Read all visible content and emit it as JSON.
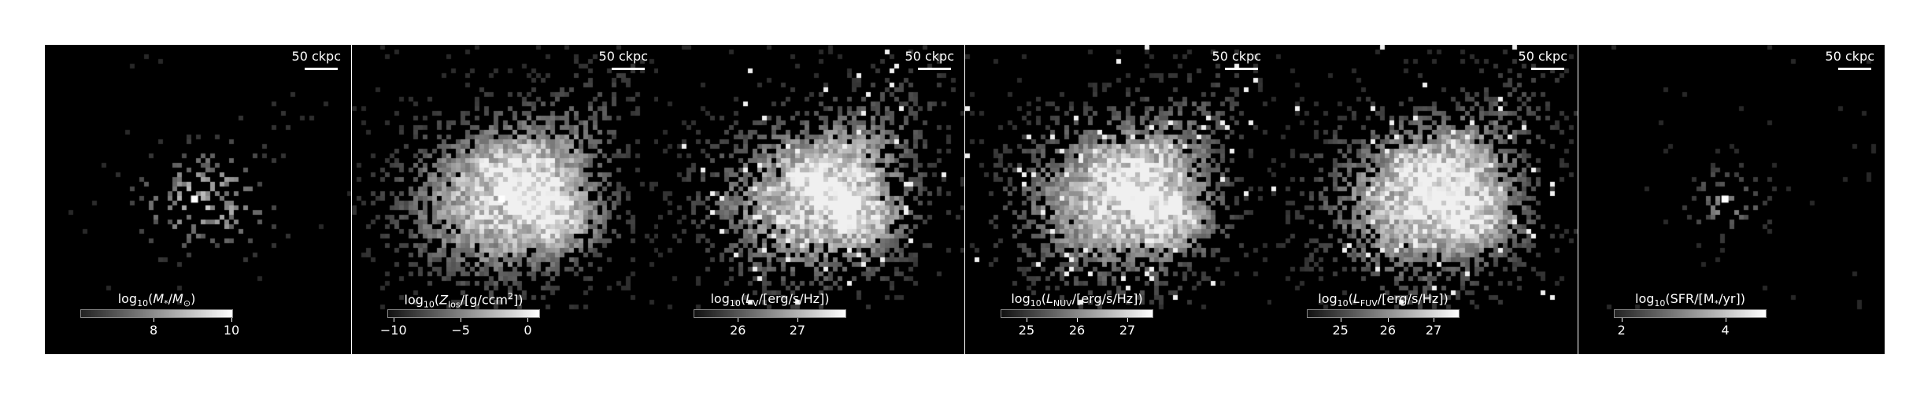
{
  "scale_label": "50 ckpc",
  "panels": [
    {
      "title_html": "log<sub>10</sub>(<i>M</i><sub>*</sub>/<i>M</i><sub>⊙</sub>)",
      "ticks": [
        {
          "label": "8",
          "frac": 0.48
        },
        {
          "label": "10",
          "frac": 0.99
        }
      ],
      "cmap": {
        "lo": "#222222",
        "hi": "#ffffff"
      },
      "image": {
        "spread": 0.55,
        "density": 0.25,
        "core": true,
        "ext": 0.22,
        "speckle": false,
        "base": 0.55
      }
    },
    {
      "title_html": "log<sub>10</sub>(<i>Z</i><sub>los</sub>/[g/ccm<sup>2</sup>])",
      "ticks": [
        {
          "label": "−10",
          "frac": 0.04
        },
        {
          "label": "−5",
          "frac": 0.48
        },
        {
          "label": "0",
          "frac": 0.92
        }
      ],
      "cmap": {
        "lo": "#111111",
        "hi": "#ffffff"
      },
      "image": {
        "spread": 1.0,
        "density": 0.8,
        "core": true,
        "ext": 0.85,
        "speckle": false,
        "base": 0.8
      }
    },
    {
      "title_html": "log<sub>10</sub>(<i>L</i><sub>V</sub>/[erg/s/Hz])",
      "ticks": [
        {
          "label": "26",
          "frac": 0.29
        },
        {
          "label": "27",
          "frac": 0.68
        }
      ],
      "cmap": {
        "lo": "#111111",
        "hi": "#ffffff"
      },
      "image": {
        "spread": 1.0,
        "density": 0.75,
        "core": false,
        "ext": 0.85,
        "speckle": true,
        "base": 0.75
      }
    },
    {
      "title_html": "log<sub>10</sub>(<i>L</i><sub>NUV</sub>/[erg/s/Hz])",
      "ticks": [
        {
          "label": "25",
          "frac": 0.17
        },
        {
          "label": "26",
          "frac": 0.5
        },
        {
          "label": "27",
          "frac": 0.83
        }
      ],
      "cmap": {
        "lo": "#111111",
        "hi": "#ffffff"
      },
      "image": {
        "spread": 1.0,
        "density": 0.8,
        "core": false,
        "ext": 0.85,
        "speckle": true,
        "base": 0.78
      }
    },
    {
      "title_html": "log<sub>10</sub>(<i>L</i><sub>FUV</sub>/[erg/s/Hz])",
      "ticks": [
        {
          "label": "25",
          "frac": 0.22
        },
        {
          "label": "26",
          "frac": 0.53
        },
        {
          "label": "27",
          "frac": 0.83
        }
      ],
      "cmap": {
        "lo": "#111111",
        "hi": "#ffffff"
      },
      "image": {
        "spread": 1.0,
        "density": 0.8,
        "core": false,
        "ext": 0.85,
        "speckle": true,
        "base": 0.78
      }
    },
    {
      "title_html": "log<sub>10</sub>(SFR/[M<sub>*</sub>/yr])",
      "ticks": [
        {
          "label": "2",
          "frac": 0.05
        },
        {
          "label": "4",
          "frac": 0.73
        }
      ],
      "cmap": {
        "lo": "#222222",
        "hi": "#ffffff"
      },
      "image": {
        "spread": 0.28,
        "density": 0.35,
        "core": true,
        "ext": 0.0,
        "speckle": false,
        "base": 0.4,
        "cx": 0.48
      }
    }
  ]
}
